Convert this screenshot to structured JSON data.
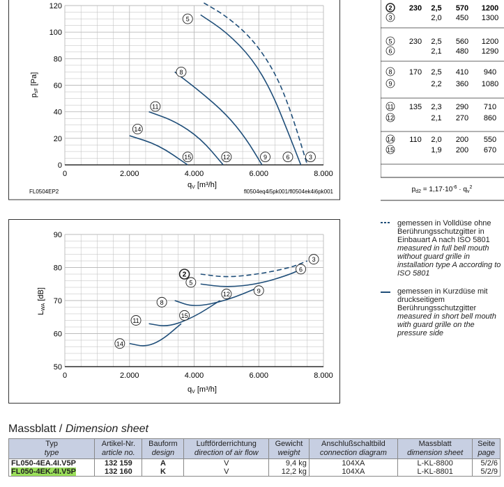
{
  "chart1": {
    "ylabel": "p_sF [Pa]",
    "xlabel": "q_V [m³/h]",
    "yticks": [
      "0",
      "20",
      "40",
      "60",
      "80",
      "100",
      "120"
    ],
    "xticks": [
      "0",
      "2.000",
      "4.000",
      "6.000",
      "8.000"
    ],
    "footer_left": "FL0504EP2",
    "footer_right": "fl0504eq4i5pk001/fl0504ek4i6pk001",
    "markers": [
      "5",
      "8",
      "11",
      "14",
      "15",
      "12",
      "9",
      "6",
      "3"
    ]
  },
  "chart2": {
    "ylabel": "L_WA [dB]",
    "xlabel": "q_V [m³/h]",
    "yticks": [
      "50",
      "60",
      "70",
      "80",
      "90"
    ],
    "xticks": [
      "0",
      "2.000",
      "4.000",
      "6.000",
      "8.000"
    ],
    "markers": [
      "2",
      "3",
      "6",
      "5",
      "12",
      "9",
      "8",
      "15",
      "11",
      "14"
    ]
  },
  "chart_data": [
    {
      "type": "line",
      "title": "",
      "xlabel": "qV [m³/h]",
      "ylabel": "psF [Pa]",
      "xlim": [
        0,
        8000
      ],
      "ylim": [
        0,
        120
      ],
      "series": [
        {
          "name": "",
          "dash": true,
          "x": [
            4300,
            5000,
            5800,
            6500,
            7000,
            7500
          ],
          "y": [
            122,
            112,
            95,
            70,
            40,
            0
          ]
        },
        {
          "name": "",
          "x": [
            4200,
            5000,
            5800,
            6400,
            6900,
            7300
          ],
          "y": [
            113,
            100,
            80,
            55,
            25,
            0
          ]
        },
        {
          "name": "",
          "x": [
            3400,
            4200,
            5000,
            5600,
            6100
          ],
          "y": [
            70,
            55,
            38,
            20,
            0
          ]
        },
        {
          "name": "",
          "x": [
            2600,
            3400,
            4200,
            4900
          ],
          "y": [
            40,
            33,
            20,
            0
          ]
        },
        {
          "name": "",
          "x": [
            2000,
            2900,
            3800
          ],
          "y": [
            22,
            15,
            0
          ]
        }
      ]
    },
    {
      "type": "line",
      "title": "",
      "xlabel": "qV [m³/h]",
      "ylabel": "LWA [dB]",
      "xlim": [
        0,
        8000
      ],
      "ylim": [
        50,
        90
      ],
      "series": [
        {
          "name": "",
          "dash": true,
          "x": [
            4200,
            5000,
            6000,
            7000,
            7500
          ],
          "y": [
            78,
            77,
            78,
            80,
            82
          ]
        },
        {
          "name": "",
          "x": [
            4200,
            5000,
            6000,
            7000,
            7400
          ],
          "y": [
            75,
            74,
            75,
            78,
            80
          ]
        },
        {
          "name": "",
          "x": [
            3400,
            4000,
            5000,
            6000
          ],
          "y": [
            70,
            68,
            70,
            74
          ]
        },
        {
          "name": "",
          "x": [
            2600,
            3200,
            4000,
            4800
          ],
          "y": [
            63,
            62,
            65,
            70
          ]
        },
        {
          "name": "",
          "x": [
            2000,
            2500,
            3000,
            3600
          ],
          "y": [
            57,
            56,
            58,
            63
          ]
        }
      ]
    }
  ],
  "right_table": {
    "rows": [
      {
        "id": "2",
        "v": "230",
        "a": "2,5",
        "p": "570",
        "n": "1200",
        "bold": true
      },
      {
        "id": "3",
        "v": "",
        "a": "2,0",
        "p": "450",
        "n": "1300"
      },
      {
        "id": "5",
        "v": "230",
        "a": "2,5",
        "p": "560",
        "n": "1200"
      },
      {
        "id": "6",
        "v": "",
        "a": "2,1",
        "p": "480",
        "n": "1290"
      },
      {
        "id": "8",
        "v": "170",
        "a": "2,5",
        "p": "410",
        "n": "940"
      },
      {
        "id": "9",
        "v": "",
        "a": "2,2",
        "p": "360",
        "n": "1080"
      },
      {
        "id": "11",
        "v": "135",
        "a": "2,3",
        "p": "290",
        "n": "710"
      },
      {
        "id": "12",
        "v": "",
        "a": "2,1",
        "p": "270",
        "n": "860"
      },
      {
        "id": "14",
        "v": "110",
        "a": "2,0",
        "p": "200",
        "n": "550"
      },
      {
        "id": "15",
        "v": "",
        "a": "1,9",
        "p": "200",
        "n": "670"
      }
    ],
    "formula": "p_d2 = 1,17·10^-6 · q_v^2"
  },
  "legend": {
    "dashed_de": "gemessen in Volldüse ohne Berührungsschutzgitter in Einbauart A nach ISO 5801",
    "dashed_en": "measured in full bell mouth without guard grille in installation type A according to ISO 5801",
    "solid_de": "gemessen in Kurzdüse mit druckseitigem Berührungsschutzgitter",
    "solid_en": "measured in short bell mouth with guard grille on the pressure side"
  },
  "massblatt": {
    "title_de": "Massblatt / ",
    "title_en": "Dimension sheet",
    "headers": [
      {
        "de": "Typ",
        "en": "type"
      },
      {
        "de": "Artikel-Nr.",
        "en": "article no."
      },
      {
        "de": "Bauform",
        "en": "design"
      },
      {
        "de": "Luftförderrichtung",
        "en": "direction of air flow"
      },
      {
        "de": "Gewicht",
        "en": "weight"
      },
      {
        "de": "Anschlußschaltbild",
        "en": "connection diagram"
      },
      {
        "de": "Massblatt",
        "en": "dimension sheet"
      },
      {
        "de": "Seite",
        "en": "page"
      }
    ],
    "rows": [
      {
        "typ": "FL050-4EA.4I.V5P",
        "art": "132 159",
        "bau": "A",
        "luft": "V",
        "gew": "9,4 kg",
        "ansch": "104XA",
        "mass": "L-KL-8800",
        "seite": "5/2/6",
        "highlight": false
      },
      {
        "typ": "FL050-4EK.4I.V5P",
        "art": "132 160",
        "bau": "K",
        "luft": "V",
        "gew": "12,2 kg",
        "ansch": "104XA",
        "mass": "L-KL-8801",
        "seite": "5/2/9",
        "highlight": true
      }
    ]
  },
  "colors": {
    "curve": "#1f4e79",
    "table_header": "#c7cfe2",
    "highlight": "#9be05a"
  }
}
